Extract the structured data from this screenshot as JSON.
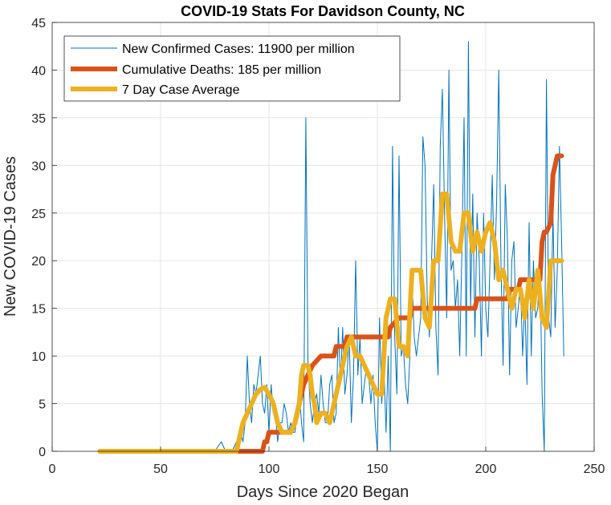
{
  "chart_data": {
    "type": "line",
    "title": "COVID-19 Stats For Davidson County, NC",
    "xlabel": "Days Since 2020 Began",
    "ylabel": "New COVID-19 Cases",
    "xlim": [
      0,
      250
    ],
    "ylim": [
      0,
      45
    ],
    "xticks": [
      0,
      50,
      100,
      150,
      200,
      250
    ],
    "yticks": [
      0,
      5,
      10,
      15,
      20,
      25,
      30,
      35,
      40,
      45
    ],
    "grid": true,
    "legend_position": "top-left",
    "series": [
      {
        "name": "New Confirmed Cases: 11900 per million",
        "color": "#0072bd",
        "style": "thin",
        "points": [
          [
            22,
            0
          ],
          [
            40,
            0
          ],
          [
            60,
            0
          ],
          [
            75,
            0
          ],
          [
            78,
            1
          ],
          [
            80,
            0
          ],
          [
            83,
            0
          ],
          [
            85,
            1
          ],
          [
            86,
            0
          ],
          [
            87,
            2
          ],
          [
            88,
            1
          ],
          [
            89,
            3
          ],
          [
            90,
            10
          ],
          [
            91,
            5
          ],
          [
            92,
            3
          ],
          [
            93,
            7
          ],
          [
            94,
            6
          ],
          [
            95,
            8
          ],
          [
            96,
            10
          ],
          [
            97,
            5
          ],
          [
            98,
            4
          ],
          [
            99,
            7
          ],
          [
            100,
            2
          ],
          [
            101,
            7
          ],
          [
            102,
            4
          ],
          [
            103,
            4
          ],
          [
            104,
            1
          ],
          [
            105,
            3
          ],
          [
            106,
            3
          ],
          [
            107,
            5
          ],
          [
            108,
            4
          ],
          [
            109,
            2
          ],
          [
            110,
            3
          ],
          [
            111,
            2
          ],
          [
            112,
            2
          ],
          [
            113,
            4
          ],
          [
            114,
            6
          ],
          [
            115,
            3
          ],
          [
            116,
            1
          ],
          [
            117,
            35
          ],
          [
            118,
            9
          ],
          [
            119,
            5
          ],
          [
            120,
            3
          ],
          [
            121,
            5
          ],
          [
            122,
            6
          ],
          [
            123,
            4
          ],
          [
            124,
            8
          ],
          [
            125,
            5
          ],
          [
            126,
            3
          ],
          [
            127,
            3
          ],
          [
            128,
            7
          ],
          [
            129,
            8
          ],
          [
            130,
            3
          ],
          [
            131,
            4
          ],
          [
            132,
            13
          ],
          [
            133,
            7
          ],
          [
            134,
            13
          ],
          [
            135,
            6
          ],
          [
            136,
            8
          ],
          [
            137,
            12
          ],
          [
            138,
            3
          ],
          [
            139,
            8
          ],
          [
            140,
            20
          ],
          [
            141,
            8
          ],
          [
            142,
            12
          ],
          [
            143,
            5
          ],
          [
            144,
            7
          ],
          [
            145,
            9
          ],
          [
            146,
            8
          ],
          [
            147,
            5
          ],
          [
            148,
            8
          ],
          [
            149,
            3
          ],
          [
            150,
            0
          ],
          [
            151,
            14
          ],
          [
            152,
            5
          ],
          [
            153,
            9
          ],
          [
            154,
            2
          ],
          [
            155,
            10
          ],
          [
            156,
            0
          ],
          [
            157,
            32
          ],
          [
            158,
            12
          ],
          [
            159,
            6
          ],
          [
            160,
            31
          ],
          [
            161,
            10
          ],
          [
            162,
            11
          ],
          [
            163,
            7
          ],
          [
            164,
            5
          ],
          [
            165,
            10
          ],
          [
            166,
            18
          ],
          [
            167,
            12
          ],
          [
            168,
            10
          ],
          [
            169,
            12
          ],
          [
            170,
            14
          ],
          [
            171,
            33
          ],
          [
            172,
            30
          ],
          [
            173,
            16
          ],
          [
            174,
            12
          ],
          [
            175,
            20
          ],
          [
            176,
            28
          ],
          [
            177,
            13
          ],
          [
            178,
            8
          ],
          [
            179,
            32
          ],
          [
            180,
            38
          ],
          [
            181,
            25
          ],
          [
            182,
            14
          ],
          [
            183,
            40
          ],
          [
            184,
            19
          ],
          [
            185,
            20
          ],
          [
            186,
            15
          ],
          [
            187,
            18
          ],
          [
            188,
            10
          ],
          [
            189,
            21
          ],
          [
            190,
            35
          ],
          [
            191,
            10
          ],
          [
            192,
            43
          ],
          [
            193,
            15
          ],
          [
            194,
            27
          ],
          [
            195,
            12
          ],
          [
            196,
            25
          ],
          [
            197,
            20
          ],
          [
            198,
            10
          ],
          [
            199,
            25
          ],
          [
            200,
            15
          ],
          [
            201,
            12
          ],
          [
            202,
            20
          ],
          [
            203,
            29
          ],
          [
            204,
            18
          ],
          [
            205,
            26
          ],
          [
            206,
            40
          ],
          [
            207,
            20
          ],
          [
            208,
            9
          ],
          [
            209,
            28
          ],
          [
            210,
            22
          ],
          [
            211,
            8
          ],
          [
            212,
            20
          ],
          [
            213,
            22
          ],
          [
            214,
            13
          ],
          [
            215,
            15
          ],
          [
            216,
            18
          ],
          [
            217,
            10
          ],
          [
            218,
            16
          ],
          [
            219,
            7
          ],
          [
            220,
            24
          ],
          [
            221,
            10
          ],
          [
            222,
            20
          ],
          [
            223,
            14
          ],
          [
            224,
            15
          ],
          [
            225,
            20
          ],
          [
            226,
            6
          ],
          [
            227,
            0
          ],
          [
            228,
            39
          ],
          [
            229,
            14
          ],
          [
            230,
            12
          ],
          [
            231,
            25
          ],
          [
            232,
            13
          ],
          [
            233,
            19
          ],
          [
            234,
            32
          ],
          [
            235,
            22
          ],
          [
            236,
            10
          ]
        ]
      },
      {
        "name": "Cumulative Deaths: 185 per million",
        "color": "#d95319",
        "style": "thick",
        "points": [
          [
            22,
            0
          ],
          [
            97,
            0
          ],
          [
            98,
            1
          ],
          [
            99,
            1
          ],
          [
            100,
            2
          ],
          [
            110,
            2
          ],
          [
            112,
            3
          ],
          [
            113,
            4
          ],
          [
            114,
            5
          ],
          [
            115,
            6
          ],
          [
            116,
            7
          ],
          [
            118,
            8
          ],
          [
            120,
            9
          ],
          [
            124,
            10
          ],
          [
            130,
            10
          ],
          [
            131,
            11
          ],
          [
            135,
            11
          ],
          [
            136,
            12
          ],
          [
            150,
            12
          ],
          [
            155,
            12
          ],
          [
            156,
            13
          ],
          [
            160,
            14
          ],
          [
            165,
            14
          ],
          [
            166,
            15
          ],
          [
            195,
            15
          ],
          [
            196,
            16
          ],
          [
            210,
            16
          ],
          [
            211,
            17
          ],
          [
            215,
            17
          ],
          [
            216,
            18
          ],
          [
            225,
            18
          ],
          [
            226,
            22
          ],
          [
            227,
            23
          ],
          [
            228,
            23
          ],
          [
            230,
            24
          ],
          [
            231,
            29
          ],
          [
            232,
            30
          ],
          [
            233,
            31
          ],
          [
            235,
            31
          ]
        ]
      },
      {
        "name": "7 Day Case Average",
        "color": "#edb120",
        "style": "thick",
        "points": [
          [
            22,
            0
          ],
          [
            85,
            0
          ],
          [
            86,
            1
          ],
          [
            87,
            2
          ],
          [
            88,
            3
          ],
          [
            89,
            3.5
          ],
          [
            90,
            4
          ],
          [
            92,
            5
          ],
          [
            94,
            6
          ],
          [
            96,
            6.5
          ],
          [
            98,
            6.7
          ],
          [
            100,
            6
          ],
          [
            102,
            5
          ],
          [
            104,
            3
          ],
          [
            106,
            2
          ],
          [
            108,
            2
          ],
          [
            110,
            2
          ],
          [
            112,
            3
          ],
          [
            114,
            5
          ],
          [
            115,
            8
          ],
          [
            116,
            9
          ],
          [
            118,
            9
          ],
          [
            119,
            8
          ],
          [
            120,
            6
          ],
          [
            121,
            5
          ],
          [
            122,
            3
          ],
          [
            123,
            3.5
          ],
          [
            124,
            4
          ],
          [
            126,
            4
          ],
          [
            128,
            3
          ],
          [
            130,
            5
          ],
          [
            132,
            7
          ],
          [
            134,
            9
          ],
          [
            136,
            11
          ],
          [
            138,
            12
          ],
          [
            139,
            11
          ],
          [
            140,
            10
          ],
          [
            142,
            10
          ],
          [
            144,
            9
          ],
          [
            146,
            8
          ],
          [
            148,
            7
          ],
          [
            150,
            6
          ],
          [
            152,
            6
          ],
          [
            154,
            14
          ],
          [
            156,
            16
          ],
          [
            158,
            16
          ],
          [
            160,
            11
          ],
          [
            162,
            11
          ],
          [
            164,
            10
          ],
          [
            166,
            19
          ],
          [
            168,
            19
          ],
          [
            170,
            19
          ],
          [
            172,
            14
          ],
          [
            174,
            13
          ],
          [
            176,
            20
          ],
          [
            178,
            20
          ],
          [
            180,
            27
          ],
          [
            182,
            27
          ],
          [
            184,
            22
          ],
          [
            186,
            21
          ],
          [
            188,
            21
          ],
          [
            190,
            25
          ],
          [
            192,
            25
          ],
          [
            194,
            21
          ],
          [
            196,
            23
          ],
          [
            198,
            21
          ],
          [
            200,
            23
          ],
          [
            202,
            24
          ],
          [
            204,
            22
          ],
          [
            206,
            18
          ],
          [
            208,
            19
          ],
          [
            210,
            17
          ],
          [
            212,
            15
          ],
          [
            214,
            17
          ],
          [
            216,
            17
          ],
          [
            218,
            14
          ],
          [
            220,
            18
          ],
          [
            222,
            15
          ],
          [
            224,
            19
          ],
          [
            226,
            14
          ],
          [
            228,
            13
          ],
          [
            230,
            20
          ],
          [
            232,
            20
          ],
          [
            234,
            20
          ],
          [
            235,
            20
          ]
        ]
      }
    ]
  }
}
